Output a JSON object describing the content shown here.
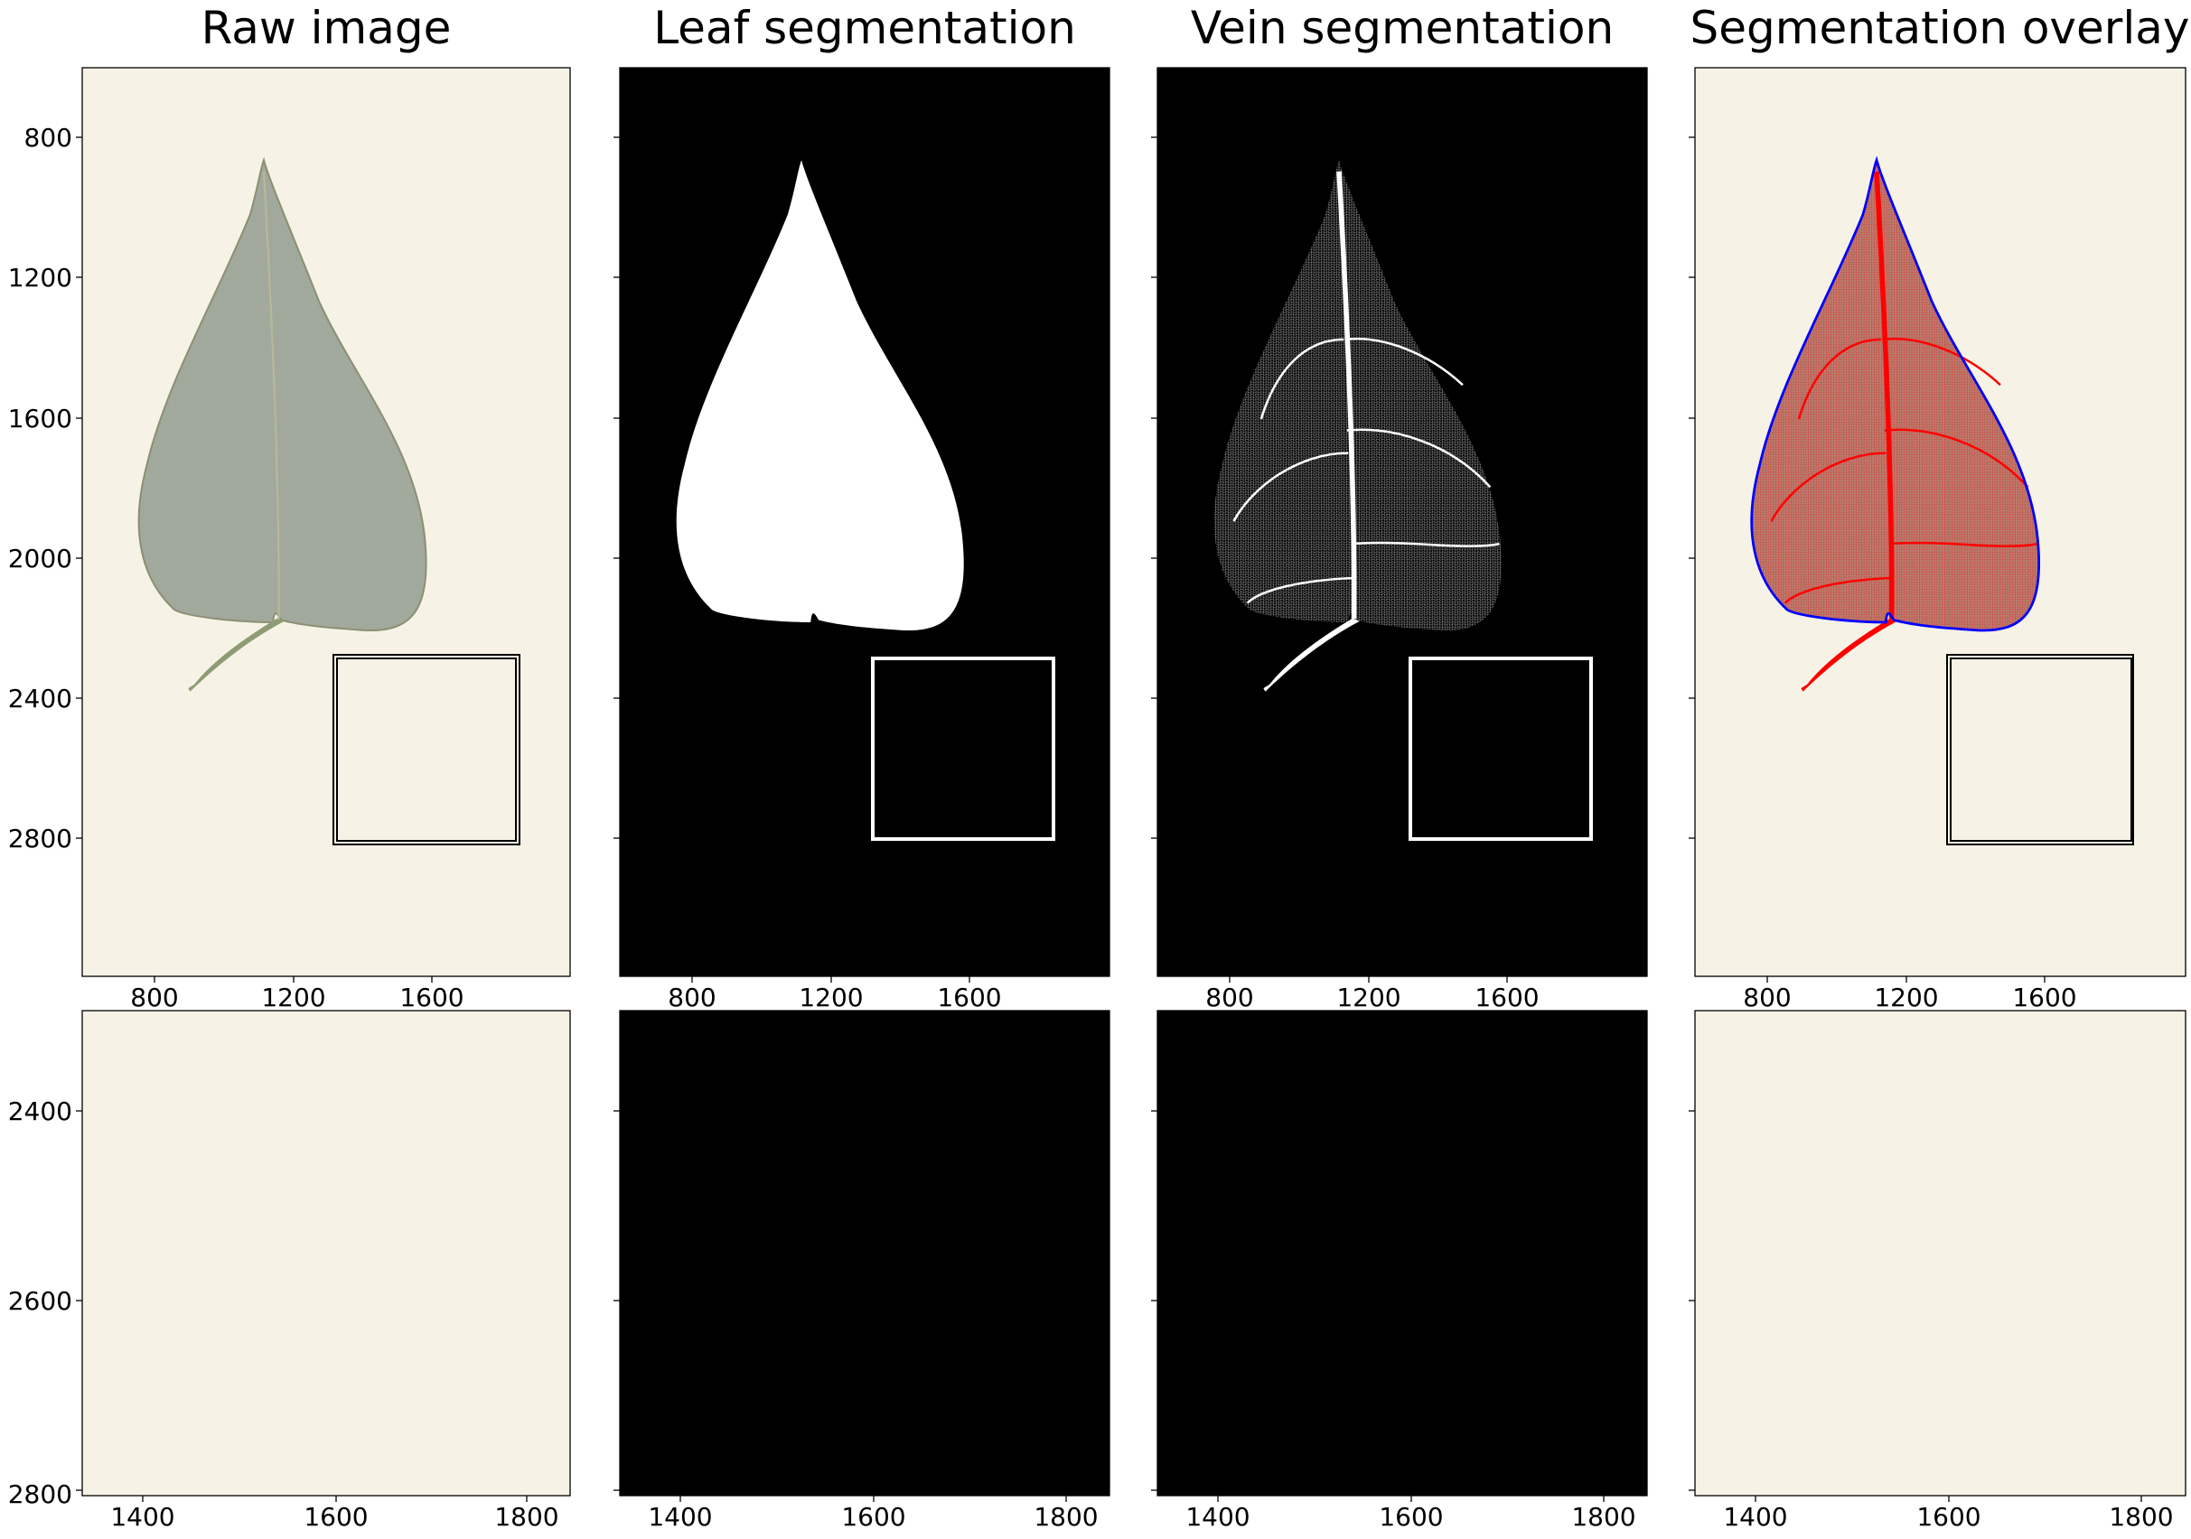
{
  "titles": [
    "Raw image",
    "Leaf segmentation",
    "Vein segmentation",
    "Segmentation overlay"
  ],
  "top_axes": {
    "x_ticks": [
      "800",
      "1200",
      "1600"
    ],
    "y_ticks": [
      "800",
      "1200",
      "1600",
      "2000",
      "2400",
      "2800"
    ]
  },
  "bottom_axes": {
    "x_ticks": [
      "1400",
      "1600",
      "1800"
    ],
    "y_ticks": [
      "2400",
      "2600",
      "2800"
    ]
  },
  "colors": {
    "leaf_fill": "#a4ab9f",
    "paper": "#f6f3e6",
    "mask_fg": "#ffffff",
    "mask_bg": "#000000",
    "overlay_leaf": "#b08879",
    "vein_overlay": "#ff0000",
    "outline_overlay": "#0000ff",
    "petiole": "#8f9b74"
  }
}
